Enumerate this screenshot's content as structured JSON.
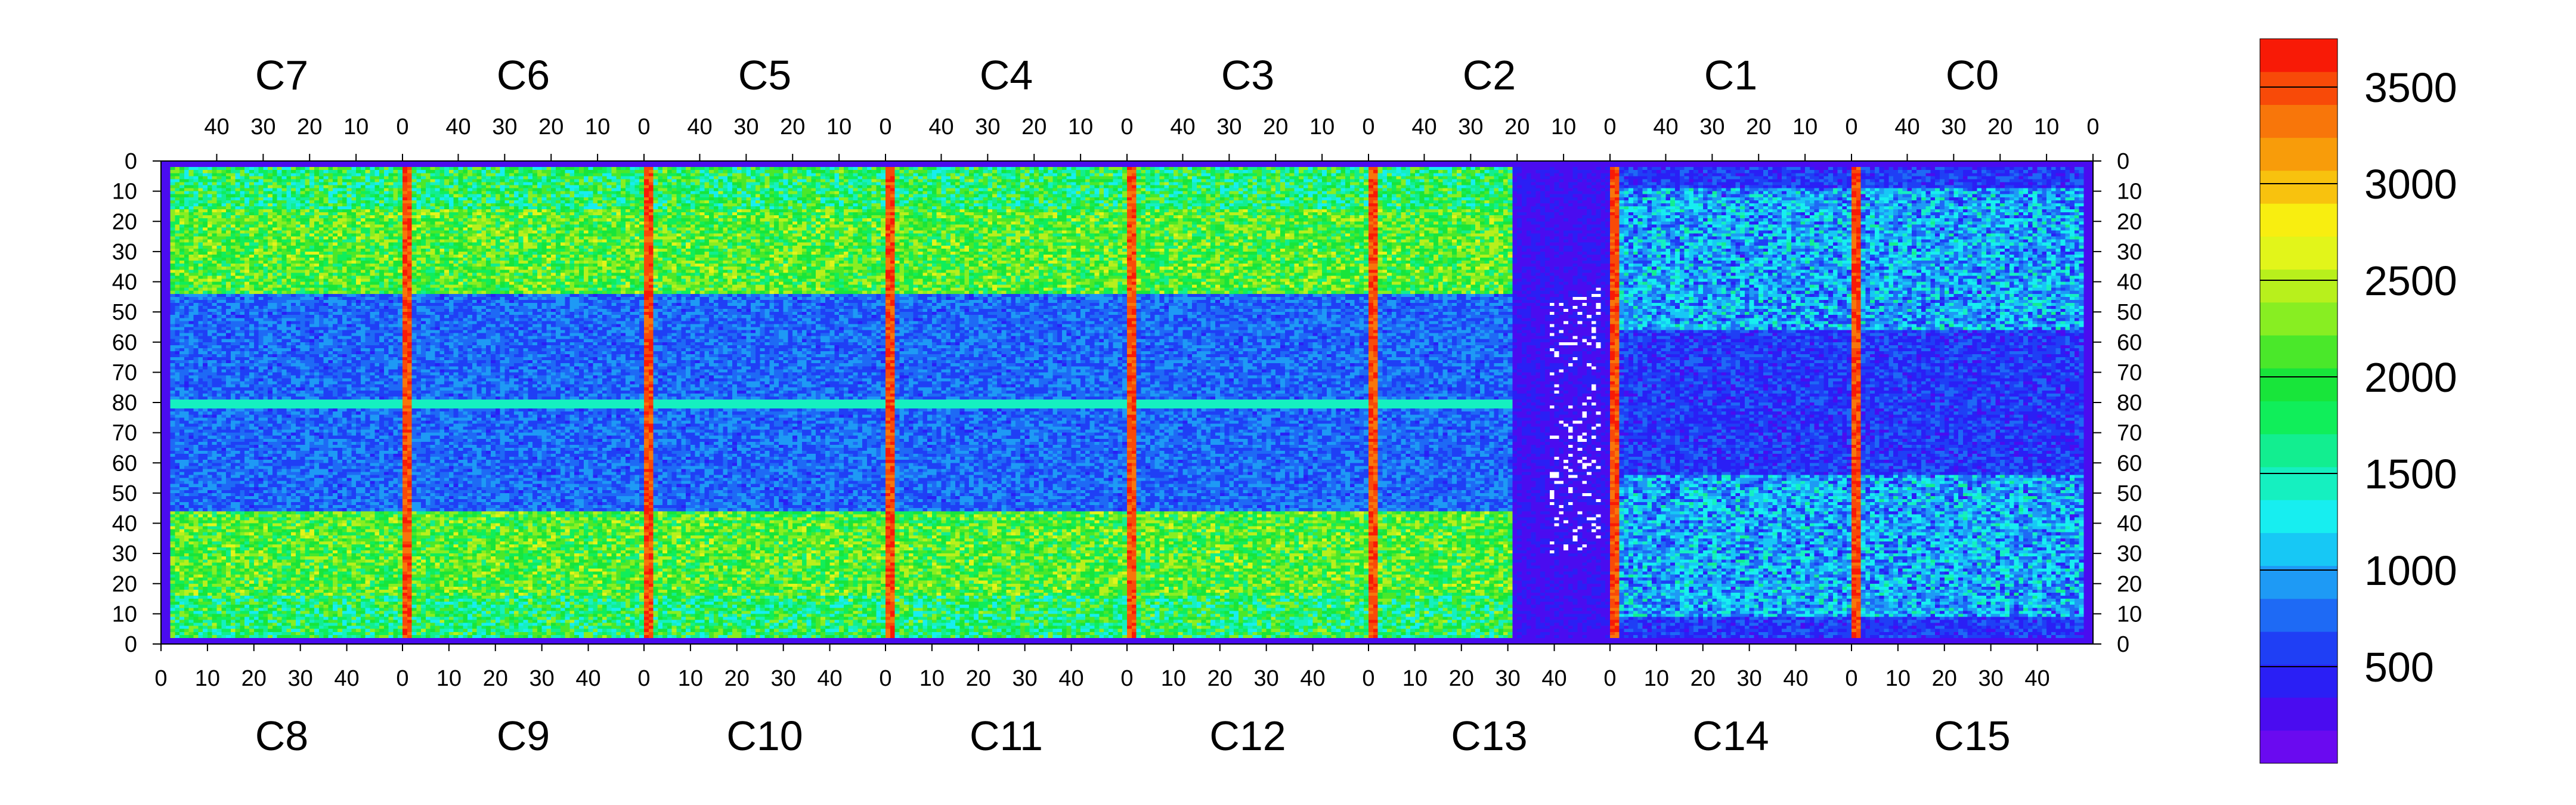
{
  "chart_data": {
    "type": "heatmap",
    "title": "",
    "xlabel": "",
    "ylabel": "",
    "top_chips": [
      "C7",
      "C6",
      "C5",
      "C4",
      "C3",
      "C2",
      "C1",
      "C0"
    ],
    "bottom_chips": [
      "C8",
      "C9",
      "C10",
      "C11",
      "C12",
      "C13",
      "C14",
      "C15"
    ],
    "top_ticks": [
      "40",
      "30",
      "20",
      "10",
      "0"
    ],
    "bottom_ticks": [
      "0",
      "10",
      "20",
      "30",
      "40"
    ],
    "y_ticks": [
      "0",
      "10",
      "20",
      "30",
      "40",
      "50",
      "60",
      "70",
      "80",
      "70",
      "60",
      "50",
      "40",
      "30",
      "20",
      "10",
      "0"
    ],
    "rows_per_half": 80,
    "columns_per_chip": 52,
    "colorbar": {
      "ticks": [
        "500",
        "1000",
        "1500",
        "2000",
        "2500",
        "3000",
        "3500"
      ],
      "zmin": 0,
      "zmax": 3750,
      "palette": [
        "#6a0af0",
        "#4a0cf0",
        "#2a1ff5",
        "#1f3ff5",
        "#1e6af5",
        "#1e9af5",
        "#17c8f5",
        "#17eef0",
        "#15f0c0",
        "#12ee90",
        "#10ee5a",
        "#18e53a",
        "#4ae82a",
        "#88ee22",
        "#b8f01c",
        "#e2f51a",
        "#f8ee10",
        "#f8c20e",
        "#f89c0a",
        "#f8760a",
        "#f84a08",
        "#f81a06"
      ]
    },
    "grid": false
  }
}
